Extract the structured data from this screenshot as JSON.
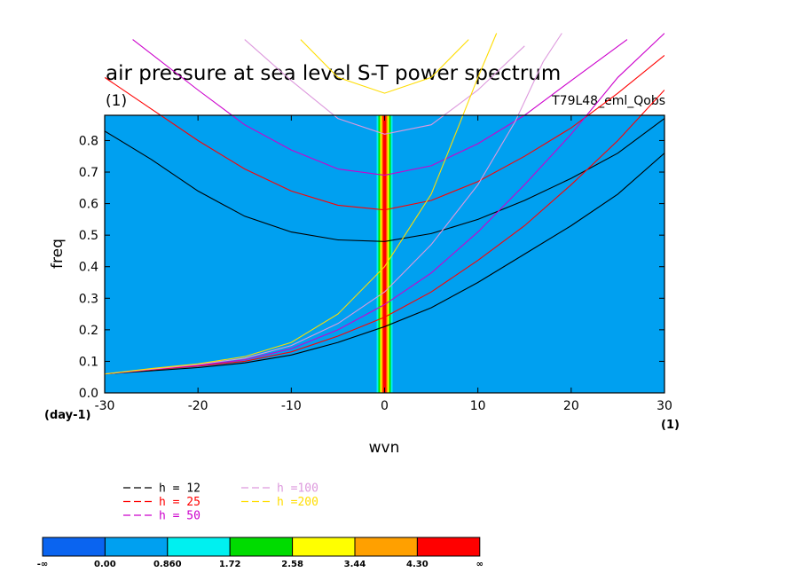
{
  "chart_data": {
    "type": "heatmap",
    "title": "air pressure at sea level S-T power spectrum",
    "subtitle": "(1)",
    "run_label": "T79L48_eml_Qobs",
    "xlabel": "wvn",
    "ylabel": "freq",
    "x_unit": "(1)",
    "y_unit": "(day-1)",
    "xlim": [
      -30,
      30
    ],
    "ylim": [
      0,
      0.88
    ],
    "x_ticks": [
      "-30",
      "-20",
      "-10",
      "0",
      "10",
      "20",
      "30"
    ],
    "y_ticks": [
      "0.0",
      "0.1",
      "0.2",
      "0.3",
      "0.4",
      "0.5",
      "0.6",
      "0.7",
      "0.8"
    ],
    "x_tick_values": [
      -30,
      -20,
      -10,
      0,
      10,
      20,
      30
    ],
    "y_tick_values": [
      0,
      0.1,
      0.2,
      0.3,
      0.4,
      0.5,
      0.6,
      0.7,
      0.8
    ],
    "field_background_level": "0.00 - 0.860",
    "field_peak": {
      "wvn_range": [
        -0.5,
        0.5
      ],
      "level": "4.30 - inf"
    },
    "series": [
      {
        "name": "h = 12",
        "color": "#000000",
        "rossby": [
          [
            -30,
            0.83
          ],
          [
            -25,
            0.74
          ],
          [
            -20,
            0.64
          ],
          [
            -15,
            0.56
          ],
          [
            -10,
            0.51
          ],
          [
            -5,
            0.485
          ],
          [
            0,
            0.48
          ],
          [
            5,
            0.505
          ],
          [
            10,
            0.55
          ],
          [
            15,
            0.61
          ],
          [
            20,
            0.68
          ],
          [
            25,
            0.76
          ],
          [
            30,
            0.87
          ]
        ],
        "kelvin": [
          [
            -30,
            0.06
          ],
          [
            -25,
            0.07
          ],
          [
            -20,
            0.08
          ],
          [
            -15,
            0.095
          ],
          [
            -10,
            0.12
          ],
          [
            -5,
            0.16
          ],
          [
            0,
            0.21
          ],
          [
            5,
            0.27
          ],
          [
            10,
            0.35
          ],
          [
            15,
            0.44
          ],
          [
            20,
            0.53
          ],
          [
            25,
            0.63
          ],
          [
            30,
            0.76
          ]
        ]
      },
      {
        "name": "h = 25",
        "color": "#ff0000",
        "rossby": [
          [
            -30,
            1.0
          ],
          [
            -25,
            0.9
          ],
          [
            -20,
            0.8
          ],
          [
            -15,
            0.71
          ],
          [
            -10,
            0.64
          ],
          [
            -5,
            0.595
          ],
          [
            0,
            0.58
          ],
          [
            5,
            0.61
          ],
          [
            10,
            0.67
          ],
          [
            15,
            0.75
          ],
          [
            20,
            0.84
          ],
          [
            25,
            0.95
          ],
          [
            30,
            1.07
          ]
        ],
        "kelvin": [
          [
            -30,
            0.06
          ],
          [
            -25,
            0.073
          ],
          [
            -20,
            0.085
          ],
          [
            -15,
            0.1
          ],
          [
            -10,
            0.13
          ],
          [
            -5,
            0.18
          ],
          [
            0,
            0.24
          ],
          [
            5,
            0.32
          ],
          [
            10,
            0.42
          ],
          [
            15,
            0.53
          ],
          [
            20,
            0.66
          ],
          [
            25,
            0.8
          ],
          [
            30,
            0.96
          ]
        ]
      },
      {
        "name": "h = 50",
        "color": "#cc00cc",
        "rossby": [
          [
            -27,
            1.12
          ],
          [
            -20,
            0.96
          ],
          [
            -15,
            0.85
          ],
          [
            -10,
            0.77
          ],
          [
            -5,
            0.71
          ],
          [
            0,
            0.69
          ],
          [
            5,
            0.72
          ],
          [
            10,
            0.79
          ],
          [
            15,
            0.88
          ],
          [
            20,
            0.99
          ],
          [
            26,
            1.12
          ]
        ],
        "kelvin": [
          [
            -30,
            0.06
          ],
          [
            -25,
            0.075
          ],
          [
            -20,
            0.087
          ],
          [
            -15,
            0.105
          ],
          [
            -10,
            0.14
          ],
          [
            -5,
            0.2
          ],
          [
            0,
            0.28
          ],
          [
            5,
            0.38
          ],
          [
            10,
            0.51
          ],
          [
            15,
            0.66
          ],
          [
            20,
            0.82
          ],
          [
            25,
            1.0
          ],
          [
            30,
            1.14
          ]
        ]
      },
      {
        "name": "h =100",
        "color": "#dd99dd",
        "rossby": [
          [
            -15,
            1.12
          ],
          [
            -10,
            0.99
          ],
          [
            -5,
            0.87
          ],
          [
            0,
            0.82
          ],
          [
            5,
            0.85
          ],
          [
            10,
            0.96
          ],
          [
            15,
            1.1
          ]
        ],
        "kelvin": [
          [
            -30,
            0.06
          ],
          [
            -25,
            0.075
          ],
          [
            -20,
            0.09
          ],
          [
            -15,
            0.11
          ],
          [
            -10,
            0.15
          ],
          [
            -5,
            0.22
          ],
          [
            0,
            0.32
          ],
          [
            5,
            0.47
          ],
          [
            10,
            0.66
          ],
          [
            14,
            0.86
          ],
          [
            17,
            1.05
          ],
          [
            19,
            1.14
          ]
        ]
      },
      {
        "name": "h =200",
        "color": "#ffdd00",
        "rossby": [
          [
            -9,
            1.12
          ],
          [
            -5,
            1.0
          ],
          [
            0,
            0.95
          ],
          [
            5,
            1.0
          ],
          [
            9,
            1.12
          ]
        ],
        "kelvin": [
          [
            -30,
            0.06
          ],
          [
            -25,
            0.077
          ],
          [
            -20,
            0.092
          ],
          [
            -15,
            0.115
          ],
          [
            -10,
            0.16
          ],
          [
            -5,
            0.25
          ],
          [
            0,
            0.4
          ],
          [
            5,
            0.63
          ],
          [
            8,
            0.85
          ],
          [
            10,
            1.0
          ],
          [
            12,
            1.14
          ]
        ]
      }
    ]
  },
  "colorbar": {
    "labels": [
      "-∞",
      "0.00",
      "0.860",
      "1.72",
      "2.58",
      "3.44",
      "4.30",
      "∞"
    ],
    "colors": [
      "#0a64f0",
      "#00a0f0",
      "#00f0f0",
      "#00dc00",
      "#ffff00",
      "#ffa000",
      "#ff0000"
    ]
  }
}
